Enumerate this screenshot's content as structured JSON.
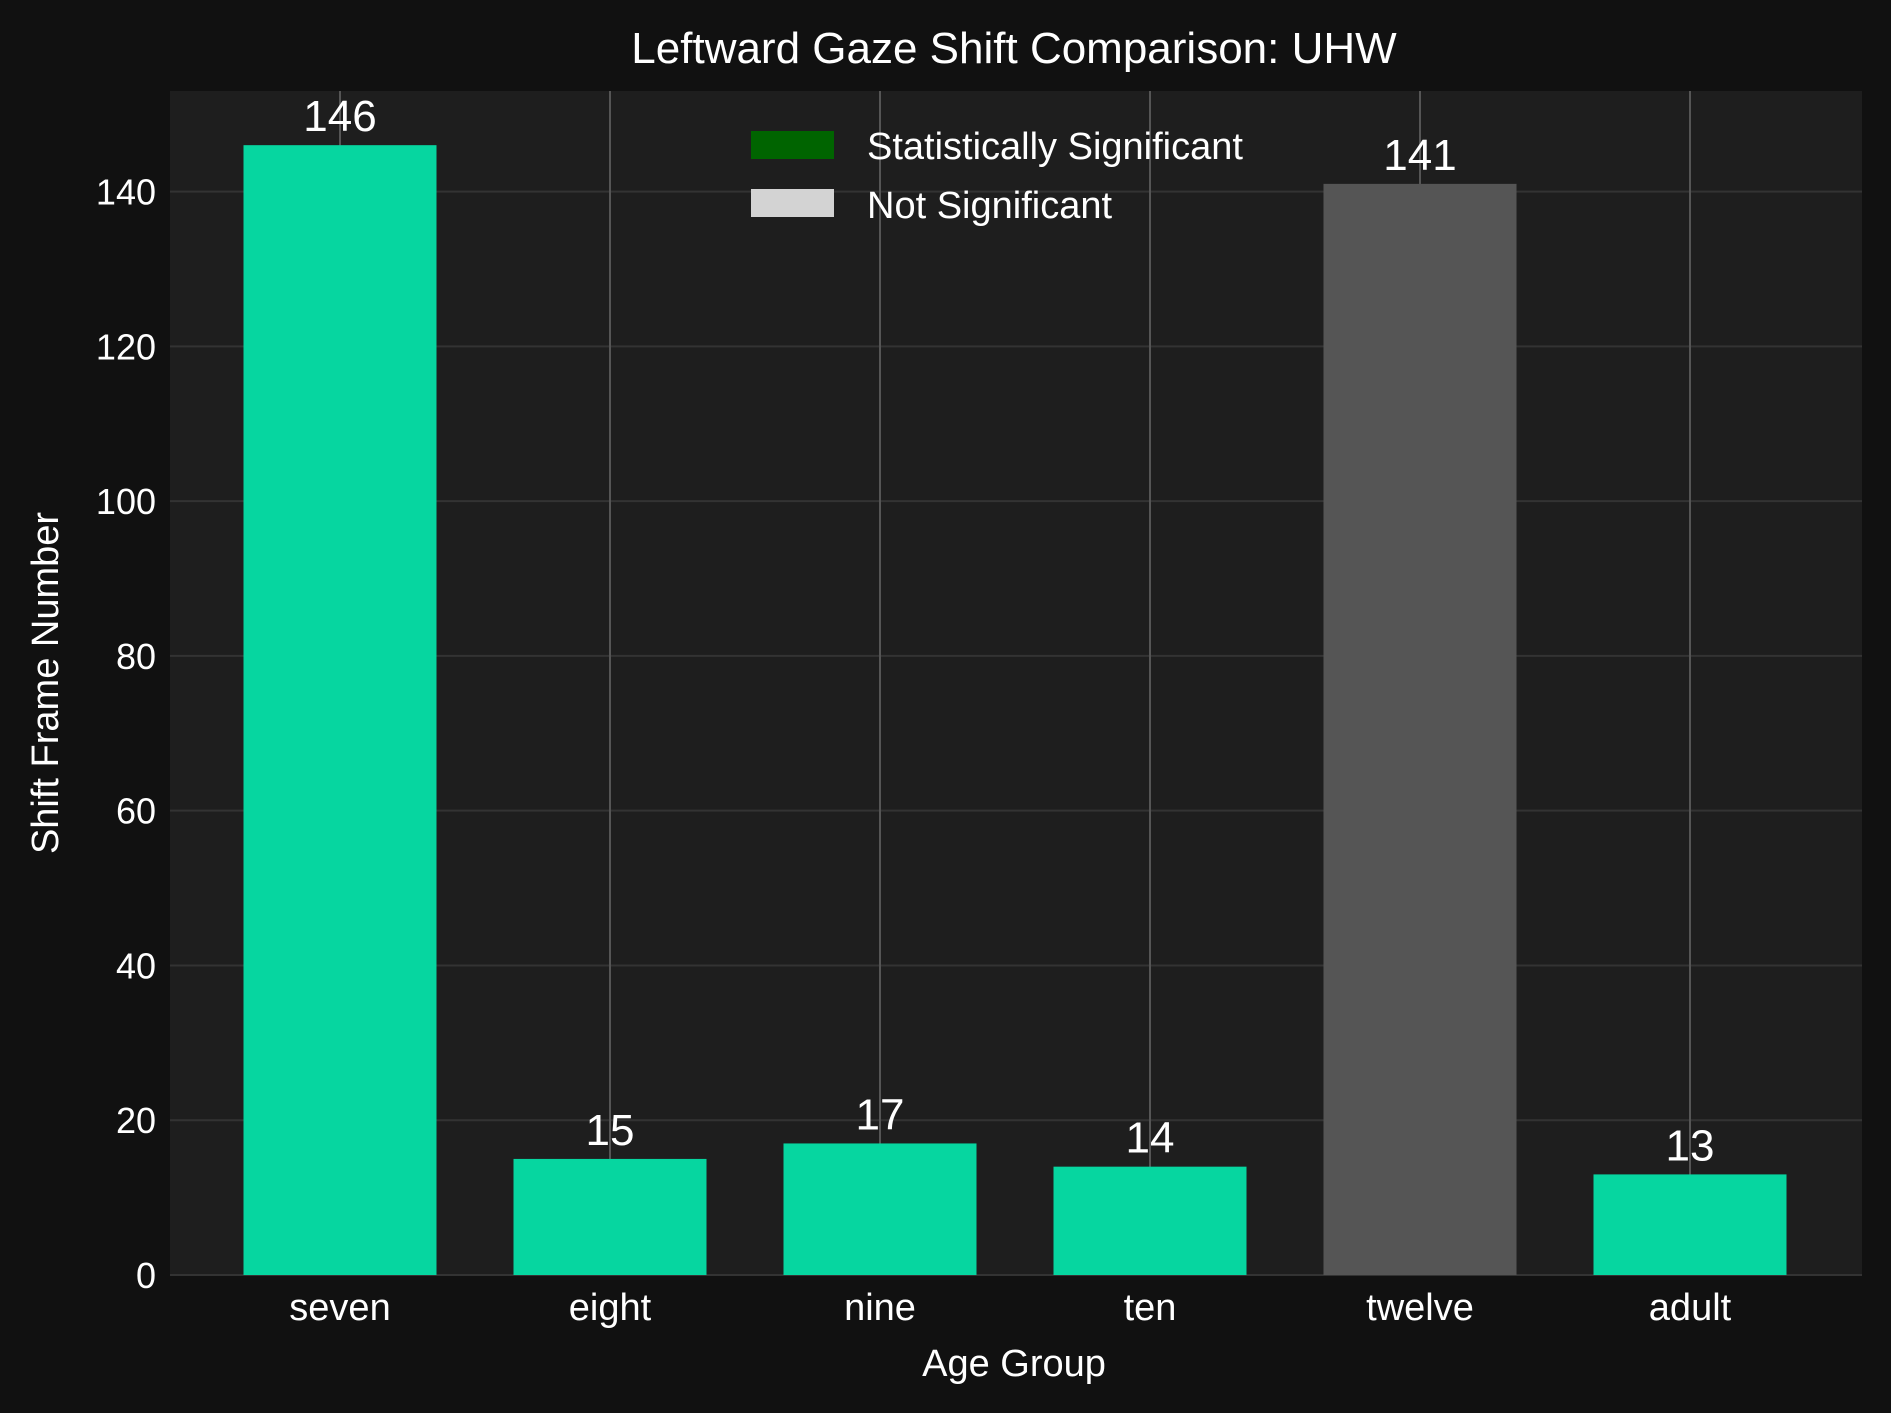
{
  "chart_data": {
    "type": "bar",
    "title": "Leftward Gaze Shift Comparison: UHW",
    "xlabel": "Age Group",
    "ylabel": "Shift Frame Number",
    "categories": [
      "seven",
      "eight",
      "nine",
      "ten",
      "twelve",
      "adult"
    ],
    "values": [
      146,
      15,
      17,
      14,
      141,
      13
    ],
    "value_labels": [
      "146",
      "15",
      "17",
      "14",
      "141",
      "13"
    ],
    "significant": [
      true,
      true,
      true,
      true,
      false,
      true
    ],
    "ylim": [
      0,
      153
    ],
    "yticks": [
      0,
      20,
      40,
      60,
      80,
      100,
      120,
      140
    ],
    "ytick_labels": [
      "0",
      "20",
      "40",
      "60",
      "80",
      "100",
      "120",
      "140"
    ],
    "grid": true,
    "legend": {
      "placement": "top-center",
      "entries": [
        {
          "label": "Statistically Significant",
          "color": "#006400"
        },
        {
          "label": "Not Significant",
          "color": "#d3d3d3"
        }
      ]
    },
    "colors": {
      "significant_bar": "#06d6a0",
      "not_significant_bar": "#555555",
      "plot_background": "#1e1e1e",
      "figure_background": "#111111"
    }
  }
}
